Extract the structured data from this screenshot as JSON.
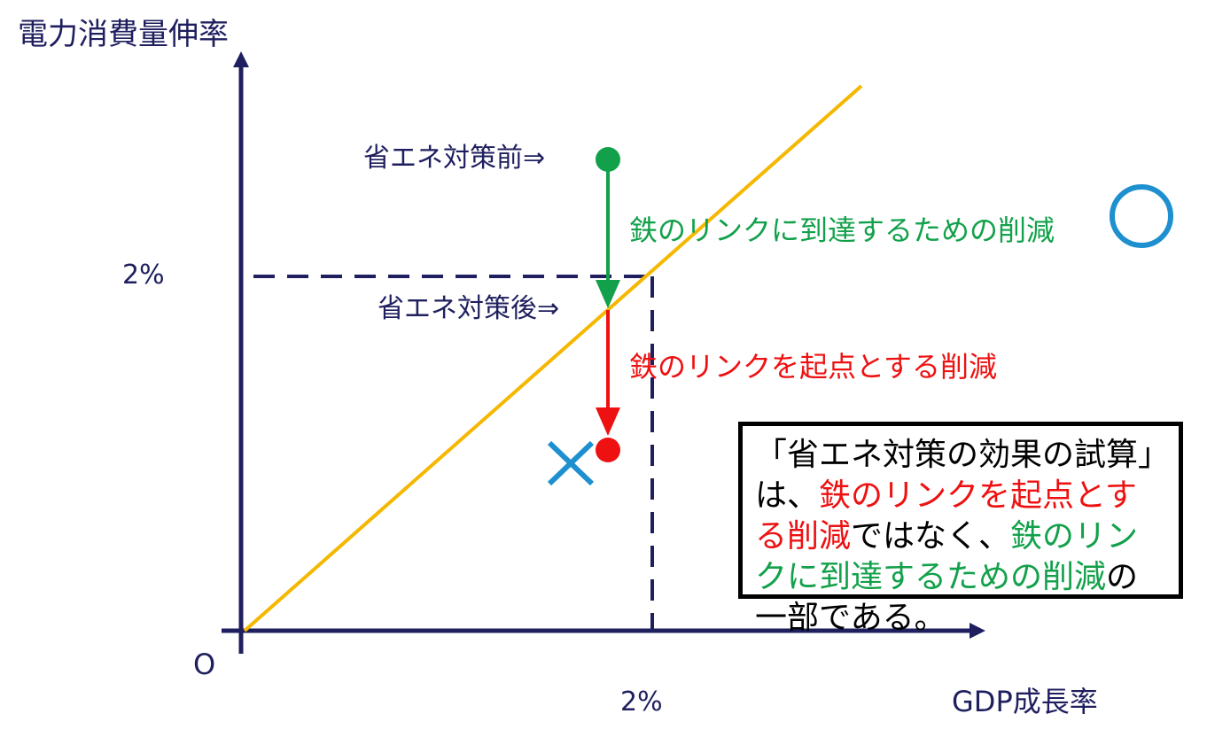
{
  "y_axis_label": "電力消費量伸率",
  "x_axis_label": "GDP成長率",
  "origin_label": "O",
  "y_tick_label": "2%",
  "x_tick_label": "2%",
  "before_label": "省エネ対策前⇒",
  "after_label": "省エネ対策後⇒",
  "green_reduction_label": "鉄のリンクに到達するための削減",
  "red_reduction_label": "鉄のリンクを起点とする削減",
  "note": {
    "part1": "「省エネ対策の効果の試算」は、",
    "part2_red": "鉄のリンクを起点とする削減",
    "part3": "ではなく、",
    "part4_green": "鉄のリンクに到達するための削減",
    "part5": "の一部である。"
  },
  "marks": {
    "correct_mark": "circle-mark",
    "wrong_mark": "cross-mark"
  },
  "colors": {
    "axis": "#1f1f5f",
    "line": "#f5b800",
    "green": "#12a14a",
    "red": "#ee1111",
    "blue_mark": "#1e90d0"
  }
}
